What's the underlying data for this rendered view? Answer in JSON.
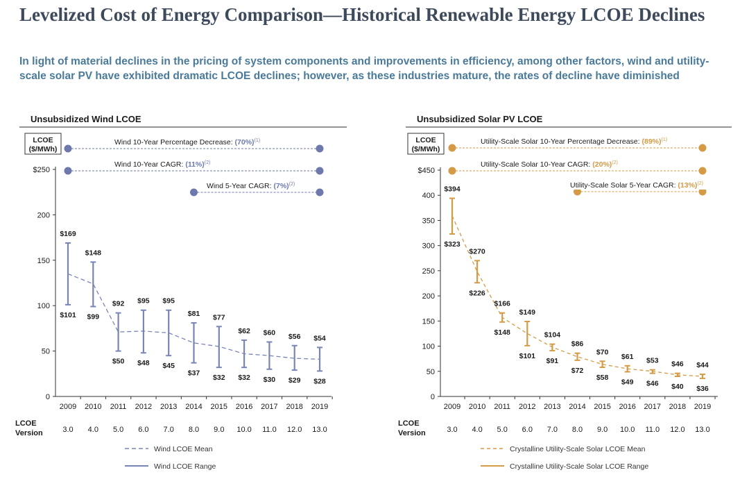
{
  "title": "Levelized Cost of Energy Comparison—Historical Renewable Energy LCOE Declines",
  "subtitle": "In light of material declines in the pricing of system components and improvements in efficiency, among other factors, wind and utility-scale solar PV have exhibited dramatic LCOE declines; however, as these industries mature, the rates of decline have diminished",
  "version_label": [
    "LCOE",
    "Version"
  ],
  "colors": {
    "wind": "#7985b5",
    "solar": "#d49a45",
    "wind_ann": "#6d79ad",
    "solar_ann": "#d49a45"
  },
  "chart_data": [
    {
      "type": "line",
      "title": "Unsubsidized Wind LCOE",
      "ylabel": [
        "LCOE",
        "($/MWh)"
      ],
      "ylim": [
        0,
        250
      ],
      "yticks": [
        0,
        50,
        100,
        150,
        200,
        250
      ],
      "ytick_labels": [
        "0",
        "50",
        "100",
        "150",
        "200",
        "$250"
      ],
      "categories": [
        "2009",
        "2010",
        "2011",
        "2012",
        "2013",
        "2014",
        "2015",
        "2016",
        "2017",
        "2018",
        "2019"
      ],
      "versions": [
        "3.0",
        "4.0",
        "5.0",
        "6.0",
        "7.0",
        "8.0",
        "9.0",
        "10.0",
        "11.0",
        "12.0",
        "13.0"
      ],
      "series": [
        {
          "name": "Wind LCOE Mean",
          "values": [
            135,
            124,
            71,
            72,
            70,
            59,
            55,
            47,
            45,
            42,
            41
          ]
        },
        {
          "name": "Wind LCOE Range",
          "high": [
            169,
            148,
            92,
            95,
            95,
            81,
            77,
            62,
            60,
            56,
            54
          ],
          "low": [
            101,
            99,
            50,
            48,
            45,
            37,
            32,
            32,
            30,
            29,
            28
          ]
        }
      ],
      "high_labels": [
        "$169",
        "$148",
        "$92",
        "$95",
        "$95",
        "$81",
        "$77",
        "$62",
        "$60",
        "$56",
        "$54"
      ],
      "low_labels": [
        "$101",
        "$99",
        "$50",
        "$48",
        "$45",
        "$37",
        "$32",
        "$32",
        "$30",
        "$29",
        "$28"
      ],
      "annotations": [
        {
          "text": "Wind 10-Year Percentage Decrease: ",
          "value": "(70%)",
          "sup": "(1)",
          "from": "2009",
          "to": "2019"
        },
        {
          "text": "Wind 10-Year CAGR: ",
          "value": "(11%)",
          "sup": "(2)",
          "from": "2009",
          "to": "2019"
        },
        {
          "text": "Wind 5-Year CAGR: ",
          "value": "(7%)",
          "sup": "(2)",
          "from": "2014",
          "to": "2019"
        }
      ],
      "legend": [
        "Wind LCOE Mean",
        "Wind LCOE Range"
      ]
    },
    {
      "type": "line",
      "title": "Unsubsidized Solar PV LCOE",
      "ylabel": [
        "LCOE",
        "($/MWh)"
      ],
      "ylim": [
        0,
        450
      ],
      "yticks": [
        0,
        50,
        100,
        150,
        200,
        250,
        300,
        350,
        400,
        450
      ],
      "ytick_labels": [
        "0",
        "50",
        "100",
        "150",
        "200",
        "250",
        "300",
        "350",
        "400",
        "$450"
      ],
      "categories": [
        "2009",
        "2010",
        "2011",
        "2012",
        "2013",
        "2014",
        "2015",
        "2016",
        "2017",
        "2018",
        "2019"
      ],
      "versions": [
        "3.0",
        "4.0",
        "5.0",
        "6.0",
        "7.0",
        "8.0",
        "9.0",
        "10.0",
        "11.0",
        "12.0",
        "13.0"
      ],
      "series": [
        {
          "name": "Crystalline Utility-Scale Solar LCOE Mean",
          "values": [
            359,
            248,
            157,
            125,
            98,
            79,
            64,
            55,
            50,
            43,
            40
          ]
        },
        {
          "name": "Crystalline Utility-Scale Solar LCOE Range",
          "high": [
            394,
            270,
            166,
            149,
            104,
            86,
            70,
            61,
            53,
            46,
            44
          ],
          "low": [
            323,
            226,
            148,
            101,
            91,
            72,
            58,
            49,
            46,
            40,
            36
          ]
        }
      ],
      "high_labels": [
        "$394",
        "$270",
        "$166",
        "$149",
        "$104",
        "$86",
        "$70",
        "$61",
        "$53",
        "$46",
        "$44"
      ],
      "low_labels": [
        "$323",
        "$226",
        "$148",
        "$101",
        "$91",
        "$72",
        "$58",
        "$49",
        "$46",
        "$40",
        "$36"
      ],
      "annotations": [
        {
          "text": "Utility-Scale Solar 10-Year Percentage Decrease: ",
          "value": "(89%)",
          "sup": "(1)",
          "from": "2009",
          "to": "2019"
        },
        {
          "text": "Utility-Scale Solar 10-Year CAGR: ",
          "value": "(20%)",
          "sup": "(2)",
          "from": "2009",
          "to": "2019"
        },
        {
          "text": "Utility-Scale Solar 5-Year CAGR: ",
          "value": "(13%)",
          "sup": "(2)",
          "from": "2014",
          "to": "2019"
        }
      ],
      "legend": [
        "Crystalline Utility-Scale Solar LCOE Mean",
        "Crystalline Utility-Scale Solar LCOE Range"
      ]
    }
  ]
}
